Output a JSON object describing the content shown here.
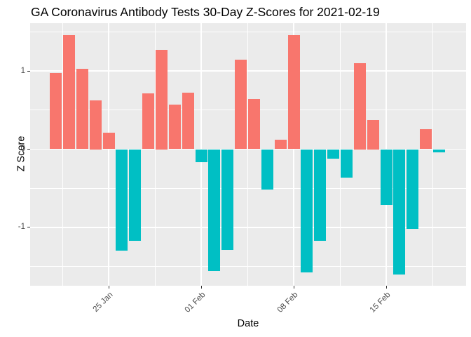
{
  "chart_data": {
    "type": "bar",
    "title": "GA Coronavirus Antibody Tests 30-Day Z-Scores for 2021-02-19",
    "xlabel": "Date",
    "ylabel": "Z Score",
    "dates": [
      "2021-01-21",
      "2021-01-22",
      "2021-01-23",
      "2021-01-24",
      "2021-01-25",
      "2021-01-26",
      "2021-01-27",
      "2021-01-28",
      "2021-01-29",
      "2021-01-30",
      "2021-01-31",
      "2021-02-01",
      "2021-02-02",
      "2021-02-03",
      "2021-02-04",
      "2021-02-05",
      "2021-02-06",
      "2021-02-07",
      "2021-02-08",
      "2021-02-09",
      "2021-02-10",
      "2021-02-11",
      "2021-02-12",
      "2021-02-13",
      "2021-02-14",
      "2021-02-15",
      "2021-02-16",
      "2021-02-17",
      "2021-02-18",
      "2021-02-19"
    ],
    "values": [
      0.97,
      1.46,
      1.03,
      0.62,
      0.21,
      -1.3,
      -1.17,
      0.71,
      1.27,
      0.57,
      0.72,
      -0.17,
      -1.56,
      -1.29,
      1.14,
      0.64,
      -0.52,
      0.12,
      1.46,
      -1.57,
      -1.17,
      -0.12,
      -0.36,
      1.1,
      0.37,
      -0.71,
      -1.6,
      -1.02,
      0.26,
      -0.04
    ],
    "x_tick_labels": [
      {
        "index": 4,
        "label": "25 Jan"
      },
      {
        "index": 11,
        "label": "01 Feb"
      },
      {
        "index": 18,
        "label": "08 Feb"
      },
      {
        "index": 25,
        "label": "15 Feb"
      }
    ],
    "x_minor_indices": [
      0.5,
      7.5,
      14.5,
      21.5,
      28.5
    ],
    "y_major_ticks": [
      {
        "value": 1,
        "label": "1"
      },
      {
        "value": 0,
        "label": "0"
      },
      {
        "value": -1,
        "label": "-1"
      }
    ],
    "y_minor_ticks": [
      1.5,
      0.5,
      -0.5,
      -1.5
    ],
    "ylim": [
      -1.74,
      1.61
    ],
    "legend": "none",
    "grid": "on",
    "positive_color": "#F8766D",
    "negative_color": "#00BFC4",
    "panel_background": "#EBEBEB",
    "grid_color": "#FFFFFF",
    "axis_text_color": "#4D4D4D",
    "tick_mark_color": "#333333",
    "title_color": "#000000"
  }
}
